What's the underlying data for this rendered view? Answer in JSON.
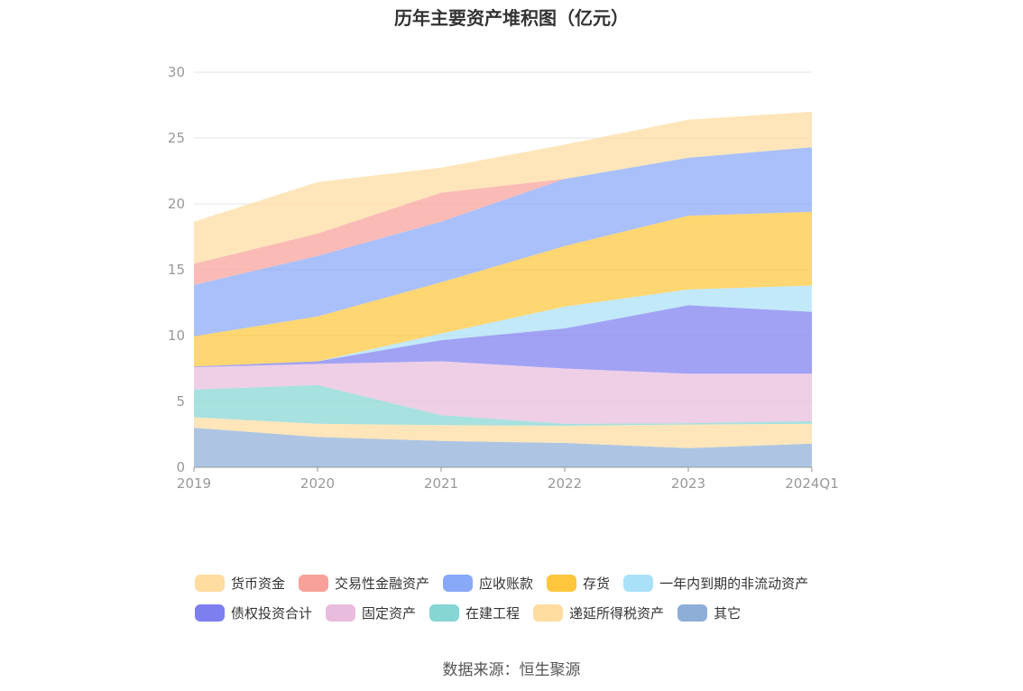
{
  "title": "历年主要资产堆积图（亿元）",
  "source": "数据来源：恒生聚源",
  "chart_data": {
    "type": "area",
    "stacked": true,
    "categories": [
      "2019",
      "2020",
      "2021",
      "2022",
      "2023",
      "2024Q1"
    ],
    "ylim": [
      0,
      30
    ],
    "yticks": [
      0,
      5,
      10,
      15,
      20,
      25,
      30
    ],
    "grid": true,
    "legend_position": "bottom",
    "series": [
      {
        "name": "其它",
        "color": "#8eaed8",
        "values": [
          3.0,
          2.3,
          2.0,
          1.85,
          1.45,
          1.8
        ]
      },
      {
        "name": "递延所得税资产",
        "color": "#ffdca0",
        "values": [
          0.8,
          1.0,
          1.2,
          1.3,
          1.8,
          1.5
        ]
      },
      {
        "name": "在建工程",
        "color": "#85d6d4",
        "values": [
          2.1,
          2.95,
          0.75,
          0.15,
          0.1,
          0.2
        ]
      },
      {
        "name": "固定资产",
        "color": "#e8bcdc",
        "values": [
          1.7,
          1.6,
          4.1,
          4.2,
          3.75,
          3.6
        ]
      },
      {
        "name": "债权投资合计",
        "color": "#7d7ef0",
        "values": [
          0.05,
          0.2,
          1.6,
          3.05,
          5.2,
          4.7
        ]
      },
      {
        "name": "一年内到期的非流动资产",
        "color": "#a9e1f8",
        "values": [
          0.0,
          0.0,
          0.5,
          1.65,
          1.2,
          2.0
        ]
      },
      {
        "name": "存货",
        "color": "#fdc63c",
        "values": [
          2.3,
          3.4,
          3.9,
          4.6,
          5.6,
          5.6
        ]
      },
      {
        "name": "应收账款",
        "color": "#88a8f8",
        "values": [
          3.9,
          4.6,
          4.6,
          5.1,
          4.4,
          4.9
        ]
      },
      {
        "name": "交易性金融资产",
        "color": "#f8a19a",
        "values": [
          1.6,
          1.7,
          2.2,
          0.0,
          0.0,
          0.0
        ]
      },
      {
        "name": "货币资金",
        "color": "#ffdca0",
        "values": [
          3.2,
          3.9,
          1.9,
          2.6,
          2.9,
          2.7
        ]
      }
    ],
    "legend_order": [
      "货币资金",
      "交易性金融资产",
      "应收账款",
      "存货",
      "一年内到期的非流动资产",
      "债权投资合计",
      "固定资产",
      "在建工程",
      "递延所得税资产",
      "其它"
    ]
  }
}
